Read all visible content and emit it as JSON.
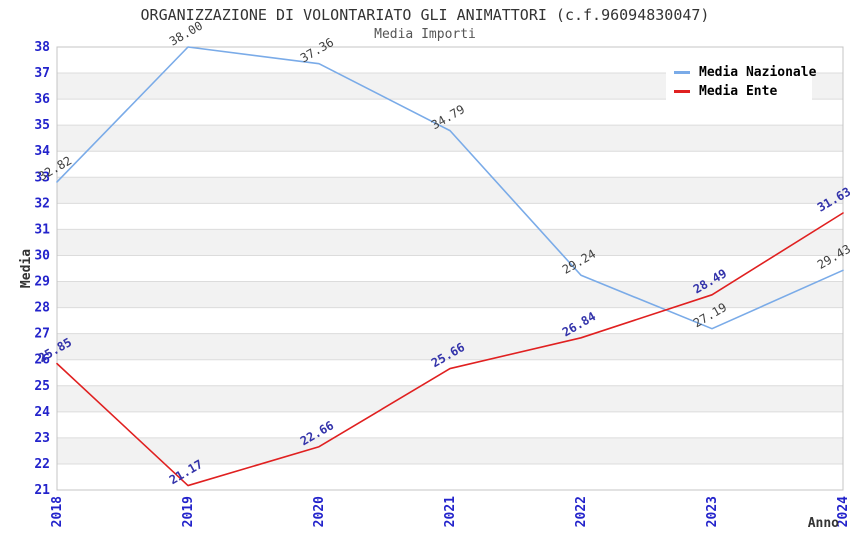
{
  "chart_data": {
    "type": "line",
    "title": "ORGANIZZAZIONE DI VOLONTARIATO GLI ANIMATTORI (c.f.96094830047)",
    "subtitle": "Media Importi",
    "xlabel": "Anno",
    "ylabel": "Media",
    "categories": [
      "2018",
      "2019",
      "2020",
      "2021",
      "2022",
      "2023",
      "2024"
    ],
    "series": [
      {
        "name": "Media Nazionale",
        "color": "#7aabe8",
        "label_color": "#404040",
        "label_bold": false,
        "values": [
          32.82,
          38.0,
          37.36,
          34.79,
          29.24,
          27.19,
          29.43
        ]
      },
      {
        "name": "Media Ente",
        "color": "#e02020",
        "label_color": "#3333aa",
        "label_bold": true,
        "values": [
          25.85,
          21.17,
          22.66,
          25.66,
          26.84,
          28.49,
          31.63
        ]
      }
    ],
    "ylim": [
      21,
      38
    ],
    "ytick_step": 1,
    "grid": true,
    "legend_position": "top-right",
    "styles": {
      "tick_label_color": "#2323cb",
      "axis_title_color": "#333333",
      "title_color": "#333333",
      "subtitle_color": "#555555",
      "stripe_color": "#f2f2f2",
      "grid_color": "#dcdcdc",
      "plot_border_color": "#c4c4c4",
      "background": "#ffffff"
    }
  }
}
